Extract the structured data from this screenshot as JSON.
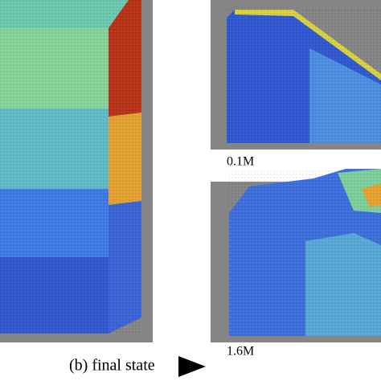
{
  "caption": "(b) final state",
  "panels": {
    "top_time": "0.1M",
    "bottom_time": "1.6M"
  }
}
